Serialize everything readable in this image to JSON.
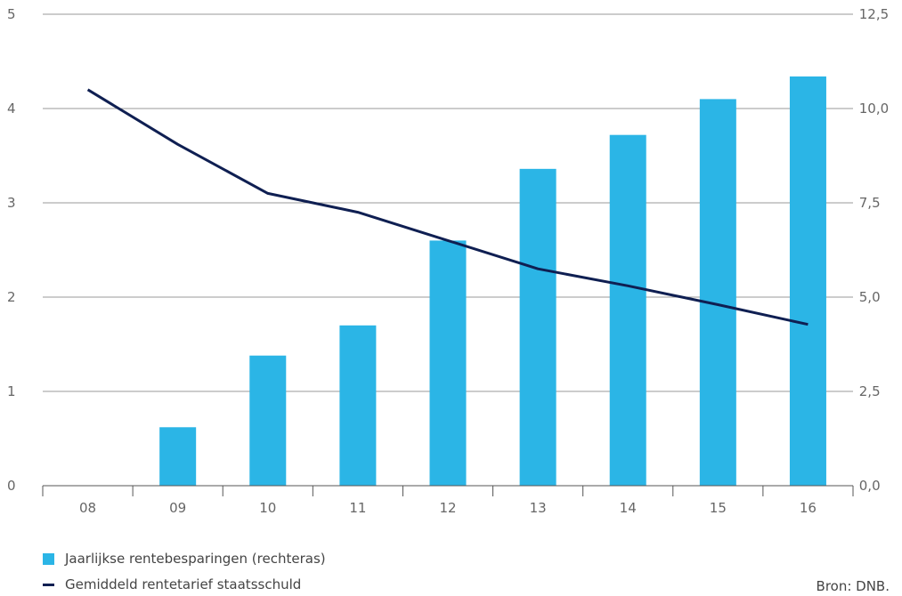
{
  "chart_data": {
    "type": "bar+line",
    "categories": [
      "08",
      "09",
      "10",
      "11",
      "12",
      "13",
      "14",
      "15",
      "16"
    ],
    "left_axis": {
      "ylim": [
        0,
        5
      ],
      "ticks": [
        "0",
        "1",
        "2",
        "3",
        "4",
        "5"
      ]
    },
    "right_axis": {
      "ylim": [
        0,
        12.5
      ],
      "ticks": [
        "0,0",
        "2,5",
        "5,0",
        "7,5",
        "10,0",
        "12,5"
      ]
    },
    "series": [
      {
        "name": "Jaarlijkse rentebesparingen (rechteras)",
        "kind": "bar",
        "axis": "right",
        "color": "#2bb5e6",
        "values": [
          0,
          1.55,
          3.45,
          4.25,
          6.5,
          8.4,
          9.3,
          10.25,
          10.85
        ]
      },
      {
        "name": "Gemiddeld rentetarief staatsschuld",
        "kind": "line",
        "axis": "left",
        "color": "#0f1f52",
        "values": [
          4.2,
          3.62,
          3.1,
          2.9,
          2.6,
          2.3,
          2.12,
          1.92,
          1.71
        ]
      }
    ],
    "grid": true,
    "legend_position": "bottom-left"
  },
  "source": "Bron: DNB."
}
